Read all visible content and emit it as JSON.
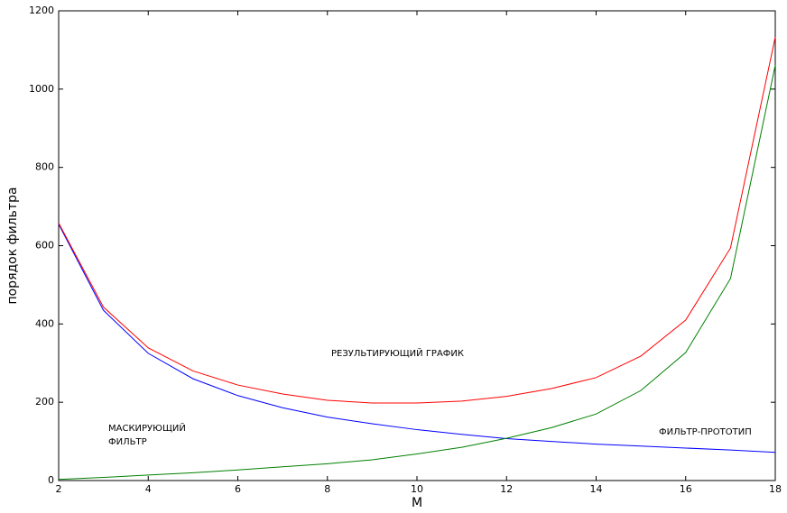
{
  "chart_data": {
    "type": "line",
    "xlabel": "M",
    "ylabel": "порядок фильтра",
    "x": [
      2,
      3,
      4,
      5,
      6,
      7,
      8,
      9,
      10,
      11,
      12,
      13,
      14,
      15,
      16,
      17,
      18
    ],
    "series": [
      {
        "color": "#0000ff",
        "values": [
          655,
          435,
          325,
          260,
          217,
          186,
          162,
          145,
          130,
          118,
          107,
          100,
          93,
          88,
          83,
          78,
          72
        ]
      },
      {
        "color": "#008000",
        "values": [
          3,
          8,
          14,
          20,
          27,
          35,
          43,
          53,
          68,
          85,
          108,
          135,
          170,
          230,
          327,
          516,
          1061
        ]
      },
      {
        "color": "#ff0000",
        "values": [
          658,
          443,
          339,
          280,
          244,
          221,
          205,
          198,
          198,
          203,
          215,
          235,
          263,
          318,
          410,
          594,
          1133
        ]
      }
    ],
    "annotations": [
      [
        "РЕЗУЛЬТИРУЮЩИЙ ГРАФИК"
      ],
      [
        "МАСКИРУЮЩИЙ",
        "ФИЛЬТР"
      ],
      [
        "ФИЛЬТР-ПРОТОТИП"
      ]
    ],
    "xlim": [
      2,
      18
    ],
    "ylim": [
      0,
      1200
    ],
    "xticks": [
      2,
      4,
      6,
      8,
      10,
      12,
      14,
      16,
      18
    ],
    "yticks": [
      0,
      200,
      400,
      600,
      800,
      1000,
      1200
    ]
  }
}
